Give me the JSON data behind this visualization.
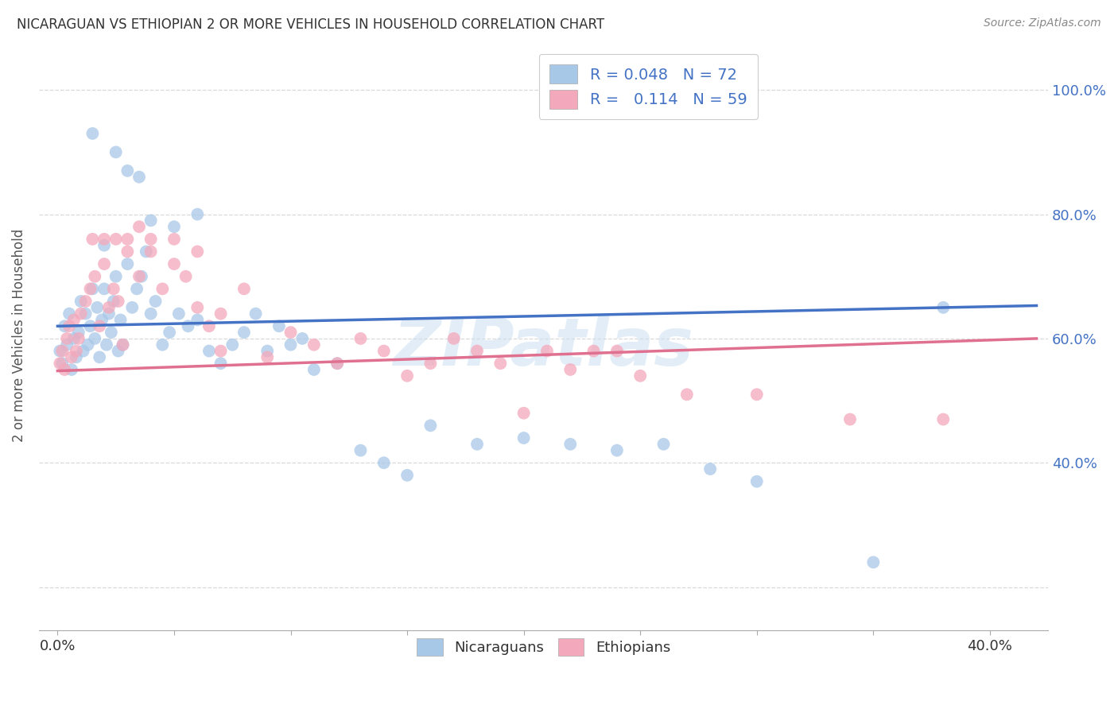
{
  "title": "NICARAGUAN VS ETHIOPIAN 2 OR MORE VEHICLES IN HOUSEHOLD CORRELATION CHART",
  "source": "Source: ZipAtlas.com",
  "ylabel": "2 or more Vehicles in Household",
  "xlim": [
    -0.008,
    0.425
  ],
  "ylim": [
    0.13,
    1.08
  ],
  "blue_color": "#a8c8e8",
  "pink_color": "#f4a8bb",
  "blue_line_color": "#4472c4",
  "pink_line_color": "#e07090",
  "right_tick_color": "#4472c4",
  "R_nicaraguan": 0.048,
  "N_nicaraguan": 72,
  "R_ethiopian": 0.114,
  "N_ethiopian": 59,
  "watermark": "ZIPatlas",
  "trendline_blue_x0": 0.0,
  "trendline_blue_y0": 0.62,
  "trendline_blue_x1": 0.42,
  "trendline_blue_y1": 0.653,
  "trendline_pink_x0": 0.0,
  "trendline_pink_y0": 0.548,
  "trendline_pink_x1": 0.42,
  "trendline_pink_y1": 0.6,
  "background_color": "#ffffff",
  "grid_color": "#d0d0d0",
  "nic_x": [
    0.001,
    0.002,
    0.003,
    0.004,
    0.005,
    0.006,
    0.007,
    0.008,
    0.009,
    0.01,
    0.011,
    0.012,
    0.013,
    0.014,
    0.015,
    0.016,
    0.017,
    0.018,
    0.019,
    0.02,
    0.021,
    0.022,
    0.023,
    0.024,
    0.025,
    0.026,
    0.027,
    0.028,
    0.03,
    0.032,
    0.034,
    0.036,
    0.038,
    0.04,
    0.042,
    0.045,
    0.048,
    0.052,
    0.056,
    0.06,
    0.065,
    0.07,
    0.075,
    0.08,
    0.085,
    0.09,
    0.095,
    0.1,
    0.105,
    0.11,
    0.12,
    0.13,
    0.14,
    0.15,
    0.16,
    0.18,
    0.2,
    0.22,
    0.24,
    0.26,
    0.28,
    0.3,
    0.03,
    0.035,
    0.025,
    0.015,
    0.05,
    0.06,
    0.02,
    0.04,
    0.35,
    0.38
  ],
  "nic_y": [
    0.58,
    0.56,
    0.62,
    0.59,
    0.64,
    0.55,
    0.6,
    0.57,
    0.61,
    0.66,
    0.58,
    0.64,
    0.59,
    0.62,
    0.68,
    0.6,
    0.65,
    0.57,
    0.63,
    0.68,
    0.59,
    0.64,
    0.61,
    0.66,
    0.7,
    0.58,
    0.63,
    0.59,
    0.72,
    0.65,
    0.68,
    0.7,
    0.74,
    0.64,
    0.66,
    0.59,
    0.61,
    0.64,
    0.62,
    0.63,
    0.58,
    0.56,
    0.59,
    0.61,
    0.64,
    0.58,
    0.62,
    0.59,
    0.6,
    0.55,
    0.56,
    0.42,
    0.4,
    0.38,
    0.46,
    0.43,
    0.44,
    0.43,
    0.42,
    0.43,
    0.39,
    0.37,
    0.87,
    0.86,
    0.9,
    0.93,
    0.78,
    0.8,
    0.75,
    0.79,
    0.24,
    0.65
  ],
  "eth_x": [
    0.001,
    0.002,
    0.003,
    0.004,
    0.005,
    0.006,
    0.007,
    0.008,
    0.009,
    0.01,
    0.012,
    0.014,
    0.016,
    0.018,
    0.02,
    0.022,
    0.024,
    0.026,
    0.028,
    0.03,
    0.035,
    0.04,
    0.045,
    0.05,
    0.055,
    0.06,
    0.065,
    0.07,
    0.08,
    0.09,
    0.1,
    0.11,
    0.12,
    0.13,
    0.14,
    0.15,
    0.16,
    0.17,
    0.18,
    0.19,
    0.2,
    0.21,
    0.22,
    0.23,
    0.24,
    0.25,
    0.27,
    0.3,
    0.34,
    0.38,
    0.015,
    0.025,
    0.035,
    0.02,
    0.03,
    0.04,
    0.05,
    0.06,
    0.07
  ],
  "eth_y": [
    0.56,
    0.58,
    0.55,
    0.6,
    0.62,
    0.57,
    0.63,
    0.58,
    0.6,
    0.64,
    0.66,
    0.68,
    0.7,
    0.62,
    0.72,
    0.65,
    0.68,
    0.66,
    0.59,
    0.74,
    0.7,
    0.74,
    0.68,
    0.72,
    0.7,
    0.65,
    0.62,
    0.58,
    0.68,
    0.57,
    0.61,
    0.59,
    0.56,
    0.6,
    0.58,
    0.54,
    0.56,
    0.6,
    0.58,
    0.56,
    0.48,
    0.58,
    0.55,
    0.58,
    0.58,
    0.54,
    0.51,
    0.51,
    0.47,
    0.47,
    0.76,
    0.76,
    0.78,
    0.76,
    0.76,
    0.76,
    0.76,
    0.74,
    0.64
  ],
  "xtick_positions": [
    0.0,
    0.05,
    0.1,
    0.15,
    0.2,
    0.25,
    0.3,
    0.35,
    0.4
  ],
  "ytick_positions": [
    0.2,
    0.4,
    0.6,
    0.8,
    1.0
  ],
  "right_ytick_positions": [
    0.4,
    0.6,
    0.8,
    1.0
  ],
  "right_ytick_labels": [
    "40.0%",
    "60.0%",
    "80.0%",
    "100.0%"
  ]
}
